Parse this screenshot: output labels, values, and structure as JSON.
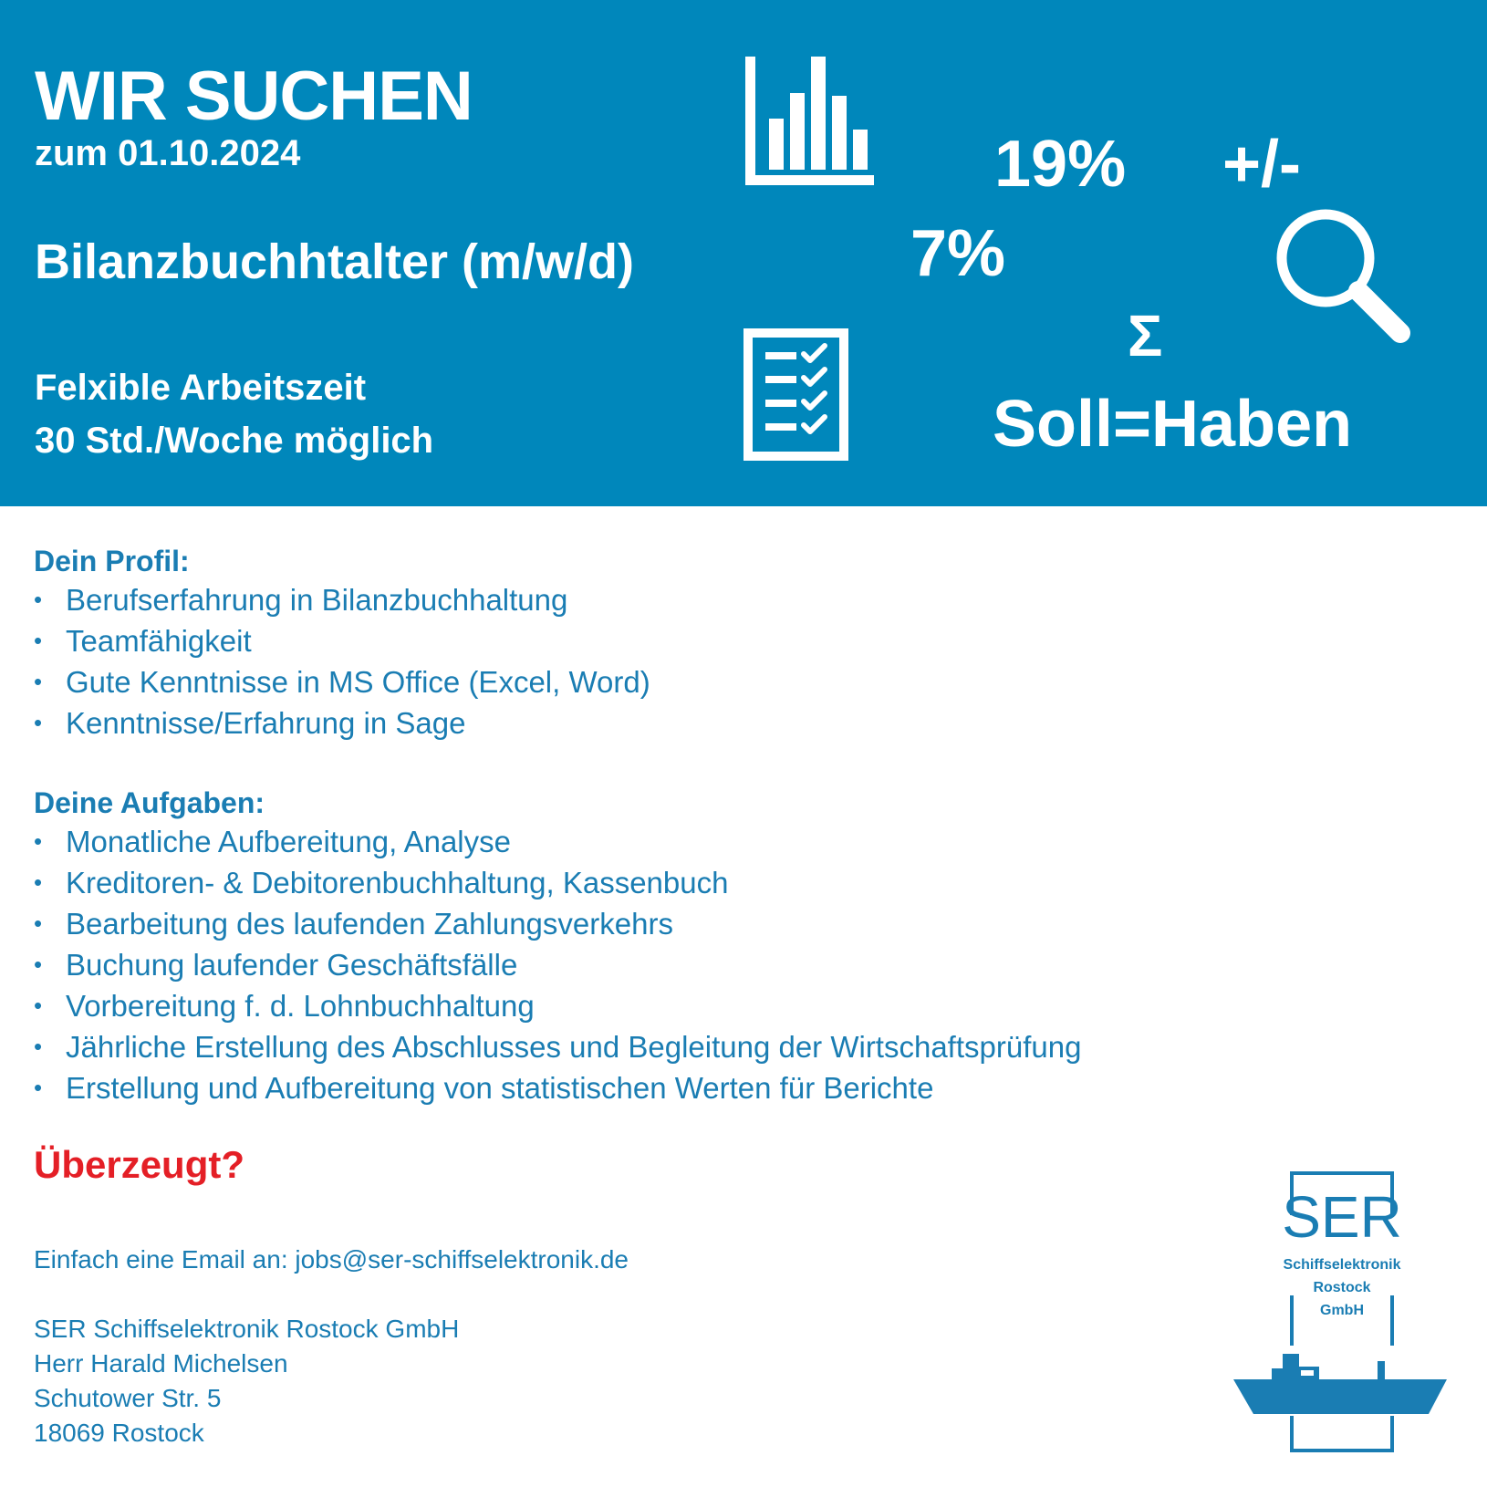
{
  "header": {
    "headline": "WIR SUCHEN",
    "date": "zum 01.10.2024",
    "job_title": "Bilanzbuchhtalter  (m/w/d)",
    "features": [
      "Felxible Arbeitszeit",
      "30 Std./Woche möglich"
    ],
    "decor_texts": {
      "vat19": "19%",
      "plus_minus": "+/-",
      "vat7": "7%",
      "sigma": "Σ",
      "soll_haben": "Soll=Haben"
    },
    "icons": [
      "bar-chart-icon",
      "checklist-icon",
      "magnifier-icon"
    ],
    "background_color": "#0087bb",
    "text_color": "#ffffff"
  },
  "profile": {
    "title": "Dein Profil:",
    "items": [
      "Berufserfahrung in Bilanzbuchhaltung",
      "Teamfähigkeit",
      "Gute Kenntnisse in MS Office (Excel, Word)",
      "Kenntnisse/Erfahrung in Sage"
    ]
  },
  "tasks": {
    "title": "Deine Aufgaben:",
    "items": [
      "Monatliche Aufbereitung, Analyse",
      "Kreditoren- & Debitorenbuchhaltung, Kassenbuch",
      "Bearbeitung des laufenden Zahlungsverkehrs",
      "Buchung laufender Geschäftsfälle",
      "Vorbereitung f. d. Lohnbuchhaltung",
      "Jährliche Erstellung des Abschlusses und Begleitung der Wirtschaftsprüfung",
      "Erstellung und Aufbereitung von statistischen Werten für Berichte"
    ]
  },
  "cta": {
    "label": "Überzeugt?",
    "color": "#e41f26"
  },
  "contact": {
    "email_line": "Einfach eine Email an: jobs@ser-schiffselektronik.de",
    "address": [
      "SER Schiffselektronik Rostock GmbH",
      "Herr Harald Michelsen",
      "Schutower Str. 5",
      "18069 Rostock"
    ]
  },
  "logo": {
    "brand": "SER",
    "lines": [
      "Schiffselektronik",
      "Rostock",
      "GmbH"
    ],
    "color": "#1a7db3"
  }
}
